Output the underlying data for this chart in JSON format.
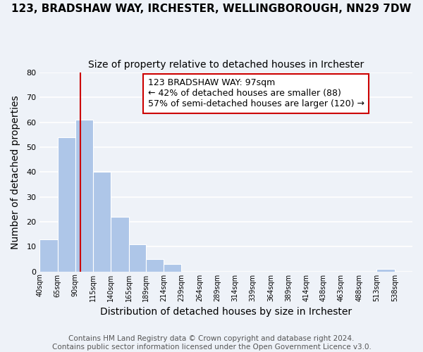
{
  "title_line1": "123, BRADSHAW WAY, IRCHESTER, WELLINGBOROUGH, NN29 7DW",
  "title_line2": "Size of property relative to detached houses in Irchester",
  "xlabel": "Distribution of detached houses by size in Irchester",
  "ylabel": "Number of detached properties",
  "bar_left_edges": [
    40,
    65,
    90,
    115,
    140,
    165,
    189,
    214,
    239,
    264,
    289,
    314,
    339,
    364,
    389,
    414,
    438,
    463,
    488,
    513
  ],
  "bar_heights": [
    13,
    54,
    61,
    40,
    22,
    11,
    5,
    3,
    0,
    0,
    0,
    0,
    0,
    0,
    0,
    0,
    0,
    0,
    0,
    1
  ],
  "bar_color": "#aec6e8",
  "bar_edge_color": "#ffffff",
  "vline_x": 97,
  "vline_color": "#cc0000",
  "annotation_line1": "123 BRADSHAW WAY: 97sqm",
  "annotation_line2": "← 42% of detached houses are smaller (88)",
  "annotation_line3": "57% of semi-detached houses are larger (120) →",
  "annotation_box_color": "#ffffff",
  "annotation_box_edge_color": "#cc0000",
  "ylim": [
    0,
    80
  ],
  "xlim": [
    40,
    563
  ],
  "tick_labels": [
    "40sqm",
    "65sqm",
    "90sqm",
    "115sqm",
    "140sqm",
    "165sqm",
    "189sqm",
    "214sqm",
    "239sqm",
    "264sqm",
    "289sqm",
    "314sqm",
    "339sqm",
    "364sqm",
    "389sqm",
    "414sqm",
    "438sqm",
    "463sqm",
    "488sqm",
    "513sqm",
    "538sqm"
  ],
  "tick_positions": [
    40,
    65,
    90,
    115,
    140,
    165,
    189,
    214,
    239,
    264,
    289,
    314,
    339,
    364,
    389,
    414,
    438,
    463,
    488,
    513,
    538
  ],
  "footer_line1": "Contains HM Land Registry data © Crown copyright and database right 2024.",
  "footer_line2": "Contains public sector information licensed under the Open Government Licence v3.0.",
  "bg_color": "#eef2f8",
  "grid_color": "#ffffff",
  "title_fontsize": 11,
  "subtitle_fontsize": 10,
  "annotation_fontsize": 9,
  "footer_fontsize": 7.5
}
